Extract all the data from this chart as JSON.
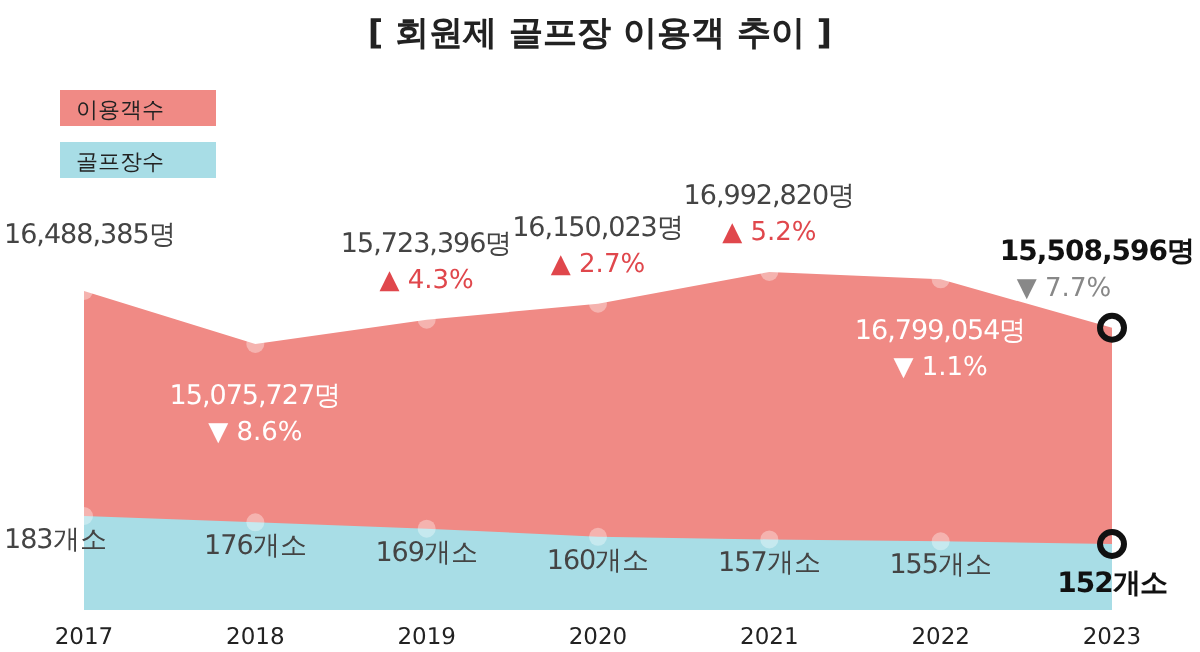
{
  "chart_data": {
    "type": "area",
    "title": "[ 회원제 골프장 이용객 추이 ]",
    "categories": [
      "2017",
      "2018",
      "2019",
      "2020",
      "2021",
      "2022",
      "2023"
    ],
    "series": [
      {
        "name": "이용객수",
        "color": "#f08a85",
        "values": [
          16488385,
          15075727,
          15723396,
          16150023,
          16992820,
          16799054,
          15508596
        ],
        "value_labels": [
          "16,488,385명",
          "15,075,727명",
          "15,723,396명",
          "16,150,023명",
          "16,992,820명",
          "16,799,054명",
          "15,508,596명"
        ]
      },
      {
        "name": "골프장수",
        "color": "#a8dde6",
        "axis": "y2",
        "values": [
          183,
          176,
          169,
          160,
          157,
          155,
          152
        ],
        "value_labels": [
          "183개소",
          "176개소",
          "169개소",
          "160개소",
          "157개소",
          "155개소",
          "152개소"
        ]
      }
    ],
    "tick_labels": "x",
    "legend": "top left",
    "marker": "circle",
    "annotations": [
      {
        "text": "▼ 8.6%",
        "x": "2018",
        "y": 15075727
      },
      {
        "text": "▲ 4.3%",
        "x": "2019",
        "y": 15723396
      },
      {
        "text": "▲ 2.7%",
        "x": "2020",
        "y": 16150023
      },
      {
        "text": "▲ 5.2%",
        "x": "2021",
        "y": 16992820
      },
      {
        "text": "▼ 1.1%",
        "x": "2022",
        "y": 16799054
      },
      {
        "text": "▼ 7.7%",
        "x": "2023",
        "y": 15508596
      }
    ]
  }
}
